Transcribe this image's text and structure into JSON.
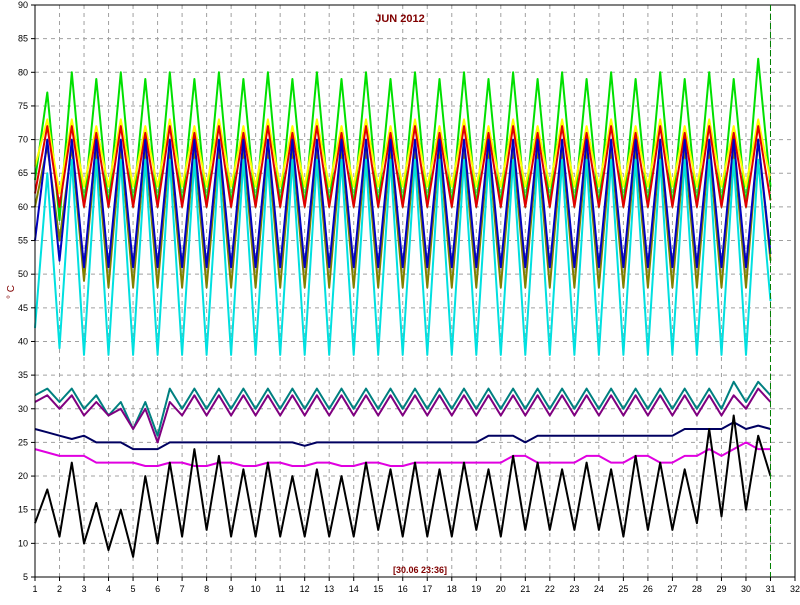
{
  "chart_data": {
    "type": "line",
    "title": "JUN 2012",
    "ylabel": "° C",
    "xlabel": "",
    "timestamp": "[30.06 23:36]",
    "xlim": [
      1,
      32
    ],
    "ylim": [
      5,
      90
    ],
    "x_ticks": [
      1,
      2,
      3,
      4,
      5,
      6,
      7,
      8,
      9,
      10,
      11,
      12,
      13,
      14,
      15,
      16,
      17,
      18,
      19,
      20,
      21,
      22,
      23,
      24,
      25,
      26,
      27,
      28,
      29,
      30,
      31,
      32
    ],
    "y_ticks": [
      5,
      10,
      15,
      20,
      25,
      30,
      35,
      40,
      45,
      50,
      55,
      60,
      65,
      70,
      75,
      80,
      85,
      90
    ],
    "grid": true,
    "current_time_marker": 31.0,
    "colors": {
      "grid": "#a0a0a0",
      "axis": "#000000",
      "title": "#800000",
      "marker": "#008000"
    },
    "x": [
      1,
      1.5,
      2,
      2.5,
      3,
      3.5,
      4,
      4.5,
      5,
      5.5,
      6,
      6.5,
      7,
      7.5,
      8,
      8.5,
      9,
      9.5,
      10,
      10.5,
      11,
      11.5,
      12,
      12.5,
      13,
      13.5,
      14,
      14.5,
      15,
      15.5,
      16,
      16.5,
      17,
      17.5,
      18,
      18.5,
      19,
      19.5,
      20,
      20.5,
      21,
      21.5,
      22,
      22.5,
      23,
      23.5,
      24,
      24.5,
      25,
      25.5,
      26,
      26.5,
      27,
      27.5,
      28,
      28.5,
      29,
      29.5,
      30,
      30.5,
      31
    ],
    "series": [
      {
        "color": "#00e000",
        "values": [
          64,
          77,
          58,
          80,
          60,
          79,
          60,
          80,
          60,
          79,
          60,
          80,
          60,
          79,
          60,
          80,
          60,
          79,
          60,
          80,
          60,
          79,
          60,
          80,
          60,
          79,
          60,
          80,
          60,
          79,
          60,
          80,
          60,
          79,
          60,
          80,
          60,
          79,
          60,
          80,
          60,
          79,
          60,
          80,
          60,
          79,
          60,
          80,
          60,
          79,
          60,
          80,
          60,
          79,
          60,
          80,
          60,
          79,
          60,
          82,
          63
        ]
      },
      {
        "color": "#ffff00",
        "values": [
          66,
          73,
          62,
          73,
          63,
          72,
          63,
          73,
          63,
          72,
          63,
          73,
          63,
          72,
          63,
          73,
          63,
          72,
          63,
          73,
          63,
          72,
          63,
          73,
          63,
          72,
          63,
          73,
          63,
          72,
          63,
          73,
          63,
          72,
          63,
          73,
          63,
          72,
          63,
          73,
          63,
          72,
          63,
          73,
          63,
          72,
          63,
          73,
          63,
          72,
          63,
          73,
          63,
          72,
          63,
          73,
          63,
          72,
          63,
          73,
          64
        ]
      },
      {
        "color": "#e00000",
        "values": [
          62,
          72,
          60,
          72,
          60,
          71,
          60,
          72,
          60,
          71,
          60,
          72,
          60,
          71,
          60,
          72,
          60,
          71,
          60,
          72,
          60,
          71,
          60,
          72,
          60,
          71,
          60,
          72,
          60,
          71,
          60,
          72,
          60,
          71,
          60,
          72,
          60,
          71,
          60,
          72,
          60,
          71,
          60,
          72,
          60,
          71,
          60,
          72,
          60,
          71,
          60,
          72,
          60,
          71,
          60,
          72,
          60,
          71,
          60,
          72,
          61
        ]
      },
      {
        "color": "#808000",
        "values": [
          60,
          69,
          55,
          69,
          49,
          69,
          48,
          69,
          48,
          69,
          48,
          69,
          48,
          69,
          48,
          69,
          48,
          69,
          48,
          69,
          48,
          69,
          48,
          69,
          48,
          69,
          48,
          69,
          48,
          69,
          48,
          69,
          48,
          69,
          48,
          69,
          48,
          69,
          48,
          69,
          48,
          69,
          48,
          69,
          48,
          69,
          48,
          69,
          48,
          69,
          48,
          69,
          48,
          69,
          48,
          69,
          48,
          69,
          48,
          70,
          52
        ]
      },
      {
        "color": "#0000c0",
        "values": [
          55,
          70,
          52,
          70,
          51,
          70,
          51,
          70,
          51,
          70,
          51,
          70,
          51,
          70,
          51,
          70,
          51,
          70,
          51,
          70,
          51,
          70,
          51,
          70,
          51,
          70,
          51,
          70,
          51,
          70,
          51,
          70,
          51,
          70,
          51,
          70,
          51,
          70,
          51,
          70,
          51,
          70,
          51,
          70,
          51,
          70,
          51,
          70,
          51,
          70,
          51,
          70,
          51,
          70,
          51,
          70,
          51,
          70,
          51,
          70,
          53
        ]
      },
      {
        "color": "#00e0e0",
        "values": [
          42,
          65,
          39,
          67,
          38,
          67,
          38,
          67,
          38,
          67,
          38,
          67,
          38,
          67,
          38,
          67,
          38,
          67,
          38,
          67,
          38,
          67,
          38,
          67,
          38,
          67,
          38,
          67,
          38,
          67,
          38,
          67,
          38,
          67,
          38,
          67,
          38,
          67,
          38,
          67,
          38,
          67,
          38,
          67,
          38,
          67,
          38,
          67,
          38,
          67,
          38,
          67,
          38,
          67,
          38,
          67,
          38,
          67,
          38,
          67,
          46
        ]
      },
      {
        "color": "#008080",
        "values": [
          32,
          33,
          31,
          33,
          30,
          32,
          29,
          31,
          27,
          31,
          26,
          33,
          30,
          33,
          30,
          33,
          30,
          33,
          30,
          33,
          30,
          33,
          30,
          33,
          30,
          33,
          30,
          33,
          30,
          33,
          30,
          33,
          30,
          33,
          30,
          33,
          30,
          33,
          30,
          33,
          30,
          33,
          30,
          33,
          30,
          33,
          30,
          33,
          30,
          33,
          30,
          33,
          30,
          33,
          30,
          33,
          30,
          34,
          31,
          34,
          32
        ]
      },
      {
        "color": "#800080",
        "values": [
          31,
          32,
          30,
          32,
          29,
          31,
          29,
          30,
          27,
          30,
          25,
          31,
          29,
          32,
          29,
          32,
          29,
          32,
          29,
          32,
          29,
          32,
          29,
          32,
          29,
          32,
          29,
          32,
          29,
          32,
          29,
          32,
          29,
          32,
          29,
          32,
          29,
          32,
          29,
          32,
          29,
          32,
          29,
          32,
          29,
          32,
          29,
          32,
          29,
          32,
          29,
          32,
          29,
          32,
          29,
          32,
          29,
          32,
          30,
          33,
          31
        ]
      },
      {
        "color": "#000060",
        "values": [
          27,
          26.5,
          26,
          25.5,
          26,
          25,
          25,
          25,
          24,
          24,
          24,
          25,
          25,
          25,
          25,
          25,
          25,
          25,
          25,
          25,
          25,
          25,
          24.5,
          25,
          25,
          25,
          25,
          25,
          25,
          25,
          25,
          25,
          25,
          25,
          25,
          25,
          25,
          26,
          26,
          26,
          25,
          26,
          26,
          26,
          26,
          26,
          26,
          26,
          26,
          26,
          26,
          26,
          26,
          27,
          27,
          27,
          27,
          28,
          27,
          27.5,
          27
        ]
      },
      {
        "color": "#e000e0",
        "values": [
          24,
          23.5,
          23,
          23,
          23,
          22,
          22,
          22,
          22,
          21.5,
          21.5,
          22,
          22,
          21.5,
          21.5,
          22,
          22,
          21.5,
          21.5,
          22,
          22,
          21.5,
          21.5,
          22,
          22,
          21.5,
          21.5,
          22,
          22,
          21.5,
          21.5,
          22,
          22,
          22,
          22,
          22,
          22,
          22,
          22,
          23,
          23,
          22,
          22,
          22,
          22,
          23,
          23,
          22,
          22,
          23,
          23,
          22,
          22,
          23,
          23,
          24,
          23,
          24,
          25,
          24,
          24
        ]
      },
      {
        "color": "#000000",
        "values": [
          13,
          18,
          11,
          22,
          10,
          16,
          9,
          15,
          8,
          20,
          10,
          22,
          11,
          24,
          12,
          23,
          11,
          21,
          11,
          22,
          11,
          20,
          11,
          21,
          11,
          20,
          11,
          22,
          12,
          21,
          11,
          22,
          11,
          21,
          11,
          22,
          12,
          21,
          11,
          23,
          12,
          22,
          12,
          21,
          12,
          22,
          12,
          21,
          11,
          23,
          12,
          22,
          12,
          21,
          13,
          27,
          14,
          29,
          15,
          26,
          20
        ]
      }
    ]
  }
}
